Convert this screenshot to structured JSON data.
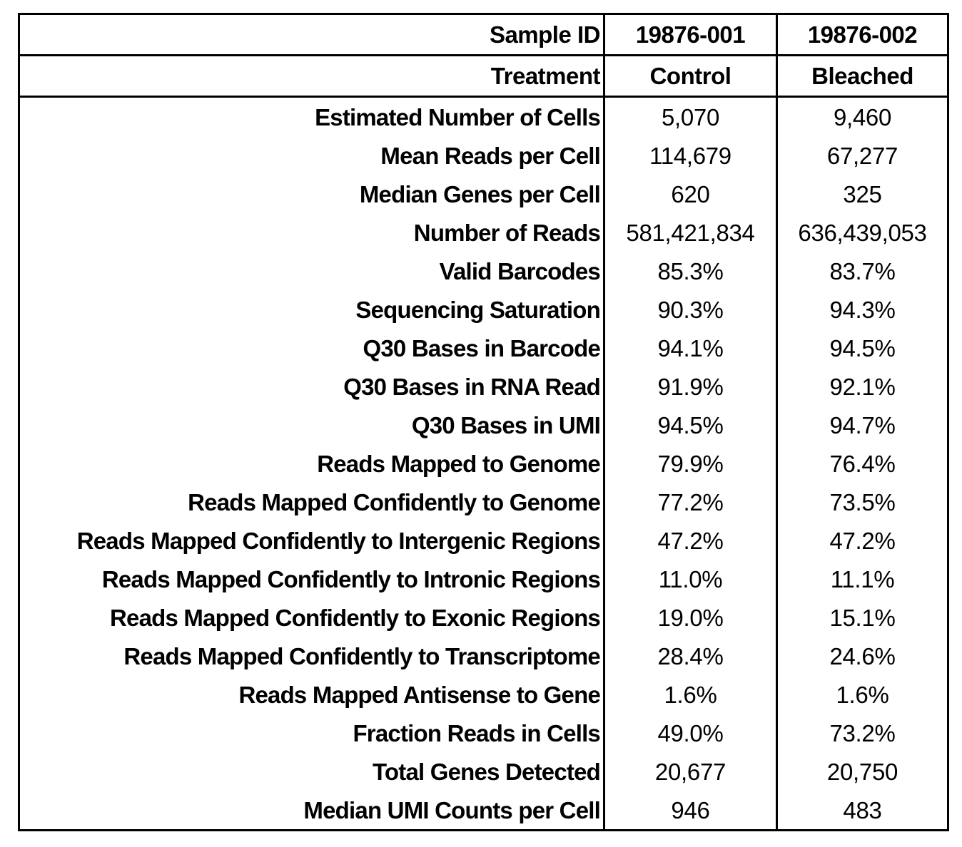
{
  "header": {
    "row1": {
      "label": "Sample ID",
      "sample1": "19876-001",
      "sample2": "19876-002"
    },
    "row2": {
      "label": "Treatment",
      "sample1": "Control",
      "sample2": "Bleached"
    }
  },
  "rows": [
    {
      "label": "Estimated Number of Cells",
      "sample1": "5,070",
      "sample2": "9,460"
    },
    {
      "label": "Mean Reads per Cell",
      "sample1": "114,679",
      "sample2": "67,277"
    },
    {
      "label": "Median Genes per Cell",
      "sample1": "620",
      "sample2": "325"
    },
    {
      "label": "Number of Reads",
      "sample1": "581,421,834",
      "sample2": "636,439,053"
    },
    {
      "label": "Valid Barcodes",
      "sample1": "85.3%",
      "sample2": "83.7%"
    },
    {
      "label": "Sequencing Saturation",
      "sample1": "90.3%",
      "sample2": "94.3%"
    },
    {
      "label": "Q30 Bases in Barcode",
      "sample1": "94.1%",
      "sample2": "94.5%"
    },
    {
      "label": "Q30 Bases in RNA Read",
      "sample1": "91.9%",
      "sample2": "92.1%"
    },
    {
      "label": "Q30 Bases in UMI",
      "sample1": "94.5%",
      "sample2": "94.7%"
    },
    {
      "label": "Reads Mapped to Genome",
      "sample1": "79.9%",
      "sample2": "76.4%"
    },
    {
      "label": "Reads Mapped Confidently to Genome",
      "sample1": "77.2%",
      "sample2": "73.5%"
    },
    {
      "label": "Reads Mapped Confidently to Intergenic Regions",
      "sample1": "47.2%",
      "sample2": "47.2%"
    },
    {
      "label": "Reads Mapped Confidently to Intronic Regions",
      "sample1": "11.0%",
      "sample2": "11.1%"
    },
    {
      "label": "Reads Mapped Confidently to Exonic Regions",
      "sample1": "19.0%",
      "sample2": "15.1%"
    },
    {
      "label": "Reads Mapped Confidently to Transcriptome",
      "sample1": "28.4%",
      "sample2": "24.6%"
    },
    {
      "label": "Reads Mapped Antisense to Gene",
      "sample1": "1.6%",
      "sample2": "1.6%"
    },
    {
      "label": "Fraction Reads in Cells",
      "sample1": "49.0%",
      "sample2": "73.2%"
    },
    {
      "label": "Total Genes Detected",
      "sample1": "20,677",
      "sample2": "20,750"
    },
    {
      "label": "Median UMI Counts per Cell",
      "sample1": "946",
      "sample2": "483"
    }
  ]
}
